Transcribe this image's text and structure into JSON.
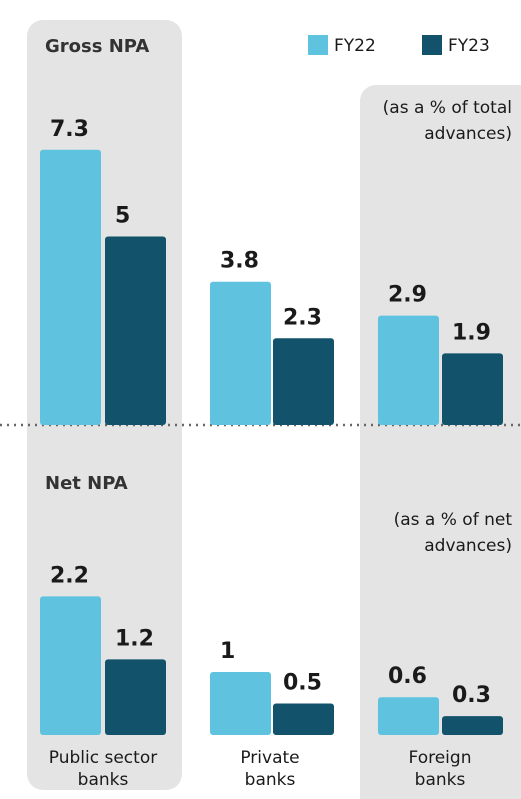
{
  "chart_data": {
    "type": "bar",
    "categories": [
      [
        "Public sector",
        "banks"
      ],
      [
        "Private",
        "banks"
      ],
      [
        "Foreign",
        "banks"
      ]
    ],
    "series": [
      {
        "name": "FY22",
        "color": "#5fc3df"
      },
      {
        "name": "FY23",
        "color": "#12526a"
      }
    ],
    "panels": [
      {
        "title": "Gross NPA",
        "note": [
          "(as a % of total",
          "advances)"
        ],
        "values": [
          [
            7.3,
            3.8,
            2.9
          ],
          [
            5,
            2.3,
            1.9
          ]
        ]
      },
      {
        "title": "Net NPA",
        "note": [
          "(as a % of net",
          "advances)"
        ],
        "values": [
          [
            2.2,
            1,
            0.6
          ],
          [
            1.2,
            0.5,
            0.3
          ]
        ]
      }
    ]
  }
}
